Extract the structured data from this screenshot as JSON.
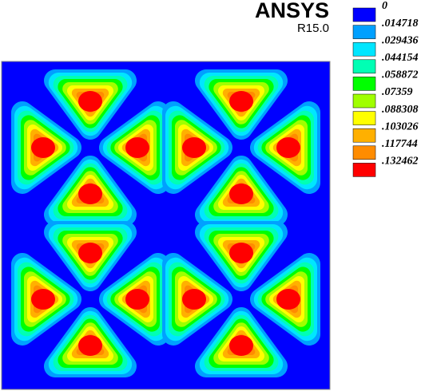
{
  "header": {
    "title": "ANSYS",
    "version": "R15.0"
  },
  "legend": {
    "entries": [
      {
        "label": "0",
        "color": "#0000ff"
      },
      {
        "label": ".014718",
        "color": "#00a0ff"
      },
      {
        "label": ".029436",
        "color": "#00e6ff"
      },
      {
        "label": ".044154",
        "color": "#00ffb4"
      },
      {
        "label": ".058872",
        "color": "#00ff00"
      },
      {
        "label": ".07359",
        "color": "#a0ff00"
      },
      {
        "label": ".088308",
        "color": "#ffff00"
      },
      {
        "label": ".103026",
        "color": "#ffb000"
      },
      {
        "label": ".117744",
        "color": "#ff8c00"
      },
      {
        "label": ".132462",
        "color": "#ff0000"
      }
    ]
  }
}
